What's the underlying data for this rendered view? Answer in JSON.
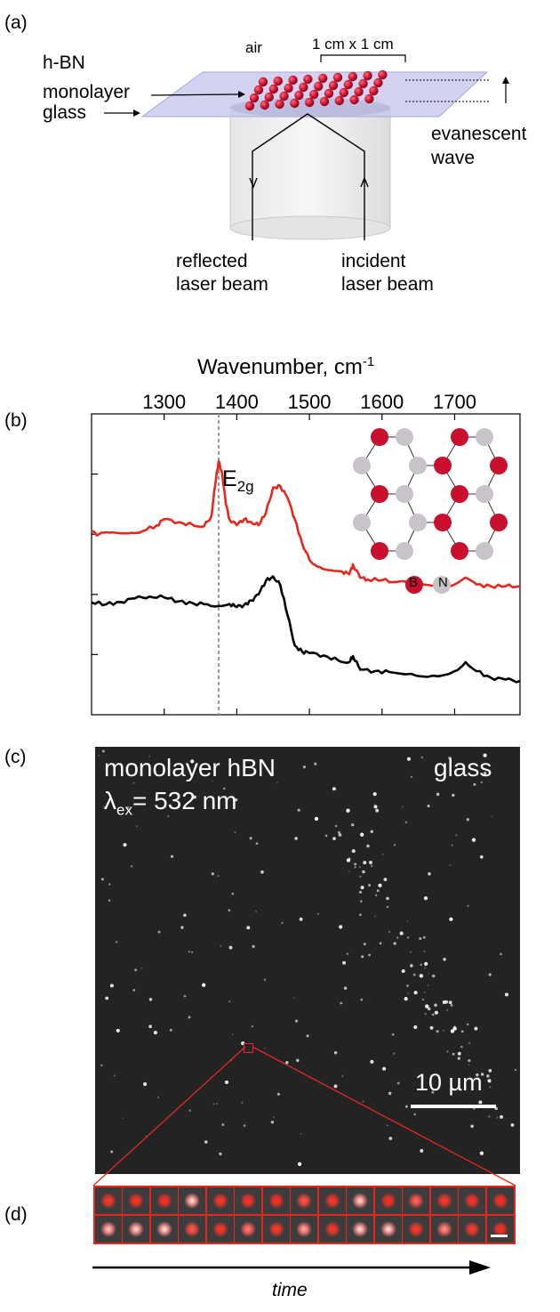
{
  "panel_a": {
    "letter": "(a)",
    "hbn": "h-BN",
    "monolayer": "monolayer",
    "glass": "glass",
    "air": "air",
    "size": "1 cm x 1 cm",
    "evanescent": "evanescent",
    "wave": "wave",
    "reflected": "reflected",
    "reflected_2": "laser beam",
    "incident": "incident",
    "incident_2": "laser beam"
  },
  "panel_b": {
    "letter": "(b)",
    "xlabel": "Wavenumber, cm",
    "xlabel_sup": "-1",
    "peak_label": "E",
    "peak_sub": "2g",
    "legend_b": "B",
    "legend_n": "N",
    "colors": {
      "red": "#e5281e",
      "black": "#000000",
      "boron": "#c8102e",
      "nitrogen": "#c7c3c8"
    }
  },
  "chart_data": {
    "type": "line",
    "xlabel": "Wavenumber, cm-1",
    "ylabel": "",
    "xlim": [
      1200,
      1790
    ],
    "ylim": [
      0,
      1
    ],
    "xticks": [
      1300,
      1400,
      1500,
      1600,
      1700
    ],
    "grid": false,
    "annotation": {
      "text": "E2g",
      "x": 1375
    },
    "series": [
      {
        "color": "#e5281e",
        "x": [
          1200,
          1210,
          1225,
          1240,
          1255,
          1270,
          1290,
          1300,
          1320,
          1340,
          1355,
          1365,
          1370,
          1375,
          1380,
          1385,
          1390,
          1400,
          1410,
          1420,
          1430,
          1440,
          1450,
          1460,
          1470,
          1480,
          1490,
          1500,
          1515,
          1530,
          1545,
          1555,
          1560,
          1570,
          1580,
          1600,
          1620,
          1650,
          1680,
          1700,
          1715,
          1730,
          1750,
          1770,
          1790
        ],
        "y": [
          0.607,
          0.6,
          0.605,
          0.603,
          0.605,
          0.61,
          0.63,
          0.65,
          0.64,
          0.63,
          0.627,
          0.66,
          0.76,
          0.843,
          0.8,
          0.7,
          0.65,
          0.63,
          0.65,
          0.64,
          0.63,
          0.67,
          0.755,
          0.76,
          0.72,
          0.65,
          0.57,
          0.515,
          0.49,
          0.48,
          0.476,
          0.467,
          0.5,
          0.455,
          0.45,
          0.447,
          0.441,
          0.433,
          0.427,
          0.433,
          0.456,
          0.433,
          0.427,
          0.427,
          0.427
        ]
      },
      {
        "color": "#000000",
        "x": [
          1200,
          1220,
          1240,
          1260,
          1280,
          1300,
          1320,
          1340,
          1360,
          1375,
          1390,
          1400,
          1410,
          1420,
          1430,
          1440,
          1450,
          1460,
          1470,
          1480,
          1490,
          1500,
          1520,
          1540,
          1555,
          1560,
          1570,
          1590,
          1610,
          1640,
          1670,
          1700,
          1715,
          1730,
          1750,
          1770,
          1790
        ],
        "y": [
          0.373,
          0.367,
          0.375,
          0.387,
          0.393,
          0.39,
          0.377,
          0.37,
          0.367,
          0.362,
          0.368,
          0.358,
          0.365,
          0.38,
          0.4,
          0.445,
          0.46,
          0.43,
          0.33,
          0.23,
          0.21,
          0.205,
          0.197,
          0.18,
          0.175,
          0.195,
          0.15,
          0.145,
          0.142,
          0.136,
          0.13,
          0.145,
          0.175,
          0.145,
          0.123,
          0.117,
          0.112
        ]
      }
    ]
  },
  "panel_c": {
    "letter": "(c)",
    "title1": "monolayer hBN",
    "lambda": "λ",
    "lambda_sub": "ex",
    "lambda_val": "= 532 nm",
    "glass": "glass",
    "scalebar": "10 µm"
  },
  "panel_d": {
    "letter": "(d)",
    "time": "time",
    "frames_row1": [
      0.1,
      0.08,
      0.05,
      0.95,
      0.1,
      0.07,
      0.05,
      0.25,
      0.1,
      0.9,
      0.05,
      0.35,
      0.1,
      0.08,
      0.05
    ],
    "frames_row2": [
      0.85,
      0.9,
      0.95,
      0.25,
      0.1,
      0.45,
      0.1,
      0.7,
      0.1,
      0.95,
      0.95,
      0.1,
      0.55,
      0.1,
      0.05
    ]
  }
}
